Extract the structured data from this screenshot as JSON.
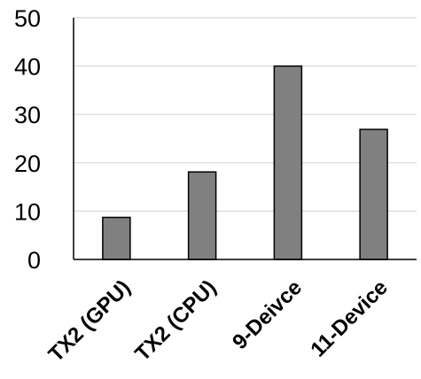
{
  "chart_data": {
    "type": "bar",
    "title": "",
    "xlabel": "",
    "ylabel": "",
    "categories": [
      "TX2 (GPU)",
      "TX2 (CPU)",
      "9-Deivce",
      "11-Device"
    ],
    "values": [
      8.7,
      18.1,
      40,
      26.9
    ],
    "ylim": [
      0,
      50
    ],
    "yticks": [
      "0",
      "10",
      "20",
      "30",
      "40",
      "50"
    ],
    "grid": true,
    "legend": "none",
    "bar_color": "#808080",
    "bar_edge_color": "#000000",
    "grid_color": "#d9d9d9"
  }
}
